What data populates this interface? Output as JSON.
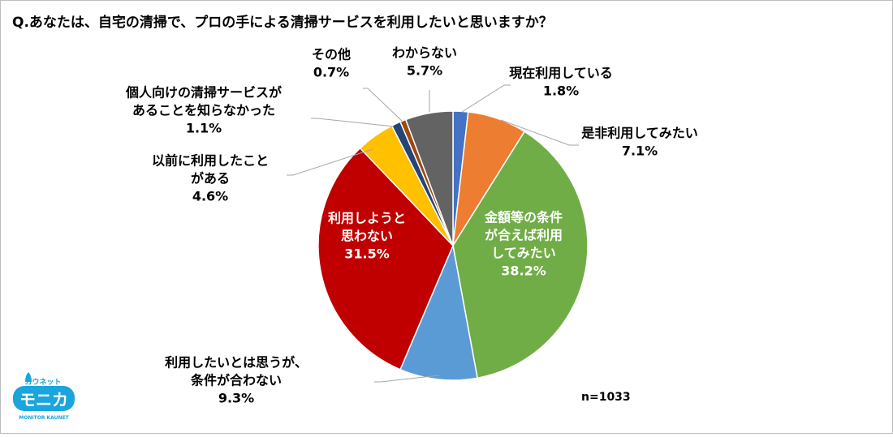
{
  "chart_data": {
    "type": "pie",
    "title": "Q.あなたは、自宅の清掃で、プロの手による清掃サービスを利用したいと思いますか？",
    "note": "n=1033",
    "slices": [
      {
        "label": [
          "現在利用している"
        ],
        "value": 1.8,
        "value_label": "1.8%",
        "color": "#4472C4"
      },
      {
        "label": [
          "是非利用してみたい"
        ],
        "value": 7.1,
        "value_label": "7.1%",
        "color": "#ED7D31"
      },
      {
        "label": [
          "金額等の条件",
          "が合えば利用",
          "してみたい"
        ],
        "value": 38.2,
        "value_label": "38.2%",
        "color": "#70AD47"
      },
      {
        "label": [
          "利用したいとは思うが、",
          "条件が合わない"
        ],
        "value": 9.3,
        "value_label": "9.3%",
        "color": "#5B9BD5"
      },
      {
        "label": [
          "利用しようと",
          "思わない"
        ],
        "value": 31.5,
        "value_label": "31.5%",
        "color": "#C00000"
      },
      {
        "label": [
          "以前に利用したこと",
          "がある"
        ],
        "value": 4.6,
        "value_label": "4.6%",
        "color": "#FFC000"
      },
      {
        "label": [
          "個人向けの清掃サービスが",
          "あることを知らなかった"
        ],
        "value": 1.1,
        "value_label": "1.1%",
        "color": "#264478"
      },
      {
        "label": [
          "その他"
        ],
        "value": 0.7,
        "value_label": "0.7%",
        "color": "#9E480E"
      },
      {
        "label": [
          "わからない"
        ],
        "value": 5.7,
        "value_label": "5.7%",
        "color": "#636363"
      }
    ]
  },
  "logo": {
    "top_text": "カウネット",
    "main_text": "モニカ",
    "bottom_text": "MONITOR KAUNET",
    "color": "#1AA5DC"
  }
}
